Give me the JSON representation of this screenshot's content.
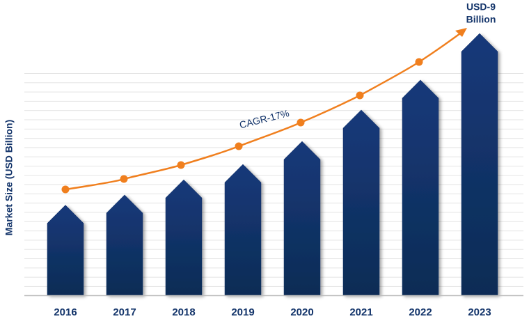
{
  "chart_data": {
    "type": "bar",
    "ylabel": "Market Size (USD Billion)",
    "top_label_lines": [
      "USD-9",
      "Billion"
    ],
    "cagr_label": "CAGR-17%",
    "categories": [
      "2016",
      "2017",
      "2018",
      "2019",
      "2020",
      "2021",
      "2022",
      "2023"
    ],
    "values": [
      3.1,
      3.45,
      3.97,
      4.5,
      5.29,
      6.37,
      7.4,
      9
    ],
    "color": "#13346a",
    "ylim": [
      0,
      9
    ]
  }
}
